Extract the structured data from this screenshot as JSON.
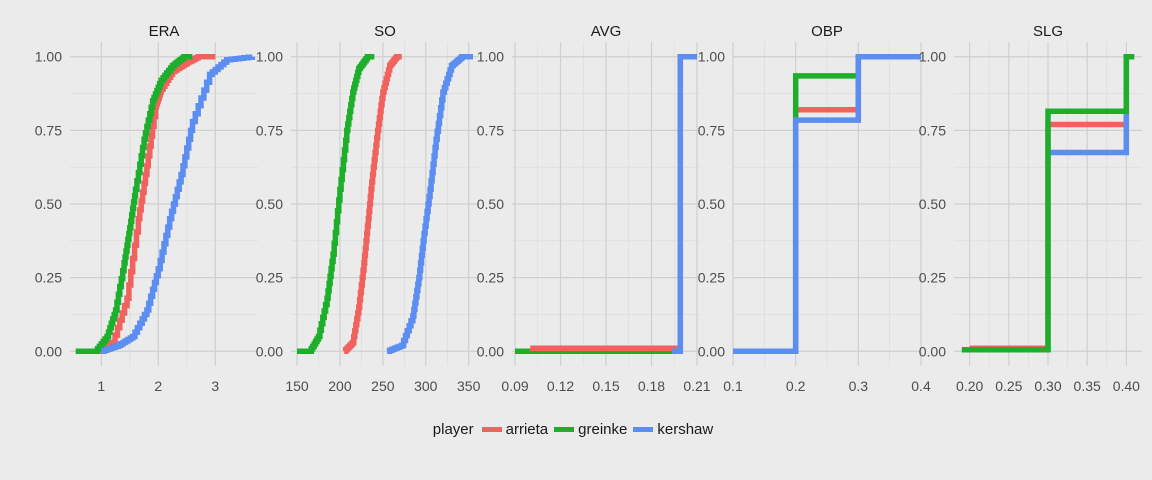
{
  "chart_data": {
    "type": "line",
    "subtype": "step-ecdf",
    "legend": {
      "title": "player",
      "position": "bottom",
      "entries": [
        "arrieta",
        "greinke",
        "kershaw"
      ]
    },
    "colors": {
      "arrieta": "#F0625E",
      "greinke": "#1DAF2C",
      "kershaw": "#5C8DF0"
    },
    "background": "#ebebeb",
    "grid": true,
    "y_ticks": [
      0,
      0.25,
      0.5,
      0.75,
      1
    ],
    "y_tick_labels": [
      "0.00",
      "0.25",
      "0.50",
      "0.75",
      "1.00"
    ],
    "ylim": [
      -0.05,
      1.05
    ],
    "panels": [
      {
        "title": "ERA",
        "xlim": [
          0.45,
          3.75
        ],
        "x_ticks": [
          1,
          2,
          3
        ],
        "x_tick_labels": [
          "1",
          "2",
          "3"
        ],
        "series": [
          {
            "name": "arrieta",
            "kind": "smooth",
            "x": [
              0.9,
              1.2,
              1.45,
              1.65,
              1.8,
              1.95,
              2.05,
              2.25,
              2.5,
              2.7,
              3.0
            ],
            "y": [
              0.0,
              0.03,
              0.18,
              0.45,
              0.63,
              0.83,
              0.89,
              0.95,
              0.98,
              1.0,
              1.0
            ]
          },
          {
            "name": "greinke",
            "kind": "smooth",
            "x": [
              0.55,
              0.9,
              1.1,
              1.25,
              1.4,
              1.5,
              1.6,
              1.75,
              1.9,
              2.05,
              2.25,
              2.45,
              2.6
            ],
            "y": [
              0.0,
              0.0,
              0.05,
              0.14,
              0.3,
              0.42,
              0.55,
              0.72,
              0.85,
              0.92,
              0.97,
              1.0,
              1.0
            ]
          },
          {
            "name": "kershaw",
            "kind": "smooth",
            "x": [
              1.0,
              1.3,
              1.55,
              1.8,
              2.0,
              2.2,
              2.4,
              2.6,
              2.9,
              3.2,
              3.65
            ],
            "y": [
              0.0,
              0.02,
              0.05,
              0.14,
              0.28,
              0.45,
              0.6,
              0.78,
              0.94,
              0.99,
              1.0
            ]
          }
        ]
      },
      {
        "title": "SO",
        "xlim": [
          143,
          362
        ],
        "x_ticks": [
          150,
          200,
          250,
          300,
          350
        ],
        "x_tick_labels": [
          "150",
          "200",
          "250",
          "300",
          "350"
        ],
        "series": [
          {
            "name": "greinke",
            "kind": "smooth",
            "x": [
              150,
              165,
              175,
              185,
              192,
              200,
              208,
              215,
              222,
              232,
              240
            ],
            "y": [
              0.0,
              0.0,
              0.05,
              0.18,
              0.33,
              0.55,
              0.75,
              0.88,
              0.96,
              1.0,
              1.0
            ]
          },
          {
            "name": "arrieta",
            "kind": "smooth",
            "x": [
              205,
              215,
              222,
              228,
              233,
              238,
              244,
              250,
              258,
              266,
              272
            ],
            "y": [
              0.0,
              0.03,
              0.15,
              0.3,
              0.45,
              0.6,
              0.75,
              0.88,
              0.97,
              1.0,
              1.0
            ]
          },
          {
            "name": "kershaw",
            "kind": "smooth",
            "x": [
              255,
              272,
              285,
              292,
              298,
              305,
              312,
              320,
              330,
              342,
              355
            ],
            "y": [
              0.0,
              0.02,
              0.12,
              0.25,
              0.4,
              0.55,
              0.72,
              0.88,
              0.97,
              1.0,
              1.0
            ]
          }
        ]
      },
      {
        "title": "AVG",
        "xlim": [
          0.088,
          0.212
        ],
        "x_ticks": [
          0.09,
          0.12,
          0.15,
          0.18,
          0.21
        ],
        "x_tick_labels": [
          "0.09",
          "0.12",
          "0.15",
          "0.18",
          "0.21"
        ],
        "series": [
          {
            "name": "greinke",
            "kind": "step",
            "x": [
              0.09,
              0.199
            ],
            "y": [
              0.0,
              0.0
            ]
          },
          {
            "name": "arrieta",
            "kind": "step",
            "x": [
              0.1,
              0.199,
              0.21
            ],
            "y": [
              0.01,
              1.0,
              1.0
            ]
          },
          {
            "name": "kershaw",
            "kind": "step",
            "x": [
              0.1935,
              0.199,
              0.21
            ],
            "y": [
              0.0,
              1.0,
              1.0
            ]
          }
        ]
      },
      {
        "title": "OBP",
        "xlim": [
          0.1,
          0.4
        ],
        "x_ticks": [
          0.1,
          0.2,
          0.3,
          0.4
        ],
        "x_tick_labels": [
          "0.1",
          "0.2",
          "0.3",
          "0.4"
        ],
        "series": [
          {
            "name": "arrieta",
            "kind": "step",
            "x": [
              0.1,
              0.2,
              0.3,
              0.4
            ],
            "y": [
              0.0,
              0.82,
              1.0,
              1.0
            ]
          },
          {
            "name": "greinke",
            "kind": "step",
            "x": [
              0.1,
              0.2,
              0.3,
              0.4
            ],
            "y": [
              0.0,
              0.935,
              1.0,
              1.0
            ]
          },
          {
            "name": "kershaw",
            "kind": "step",
            "x": [
              0.1,
              0.2,
              0.3,
              0.4
            ],
            "y": [
              0.0,
              0.785,
              1.0,
              1.0
            ]
          }
        ]
      },
      {
        "title": "SLG",
        "xlim": [
          0.18,
          0.42
        ],
        "x_ticks": [
          0.2,
          0.25,
          0.3,
          0.35,
          0.4
        ],
        "x_tick_labels": [
          "0.20",
          "0.25",
          "0.30",
          "0.35",
          "0.40"
        ],
        "series": [
          {
            "name": "arrieta",
            "kind": "step",
            "x": [
              0.2,
              0.3,
              0.4,
              0.41
            ],
            "y": [
              0.01,
              0.77,
              1.0,
              1.0
            ]
          },
          {
            "name": "kershaw",
            "kind": "step",
            "x": [
              0.3,
              0.4,
              0.41
            ],
            "y": [
              0.675,
              1.0,
              1.0
            ]
          },
          {
            "name": "greinke",
            "kind": "step",
            "x": [
              0.19,
              0.3,
              0.4,
              0.41
            ],
            "y": [
              0.005,
              0.815,
              1.0,
              1.0
            ]
          }
        ]
      }
    ]
  }
}
